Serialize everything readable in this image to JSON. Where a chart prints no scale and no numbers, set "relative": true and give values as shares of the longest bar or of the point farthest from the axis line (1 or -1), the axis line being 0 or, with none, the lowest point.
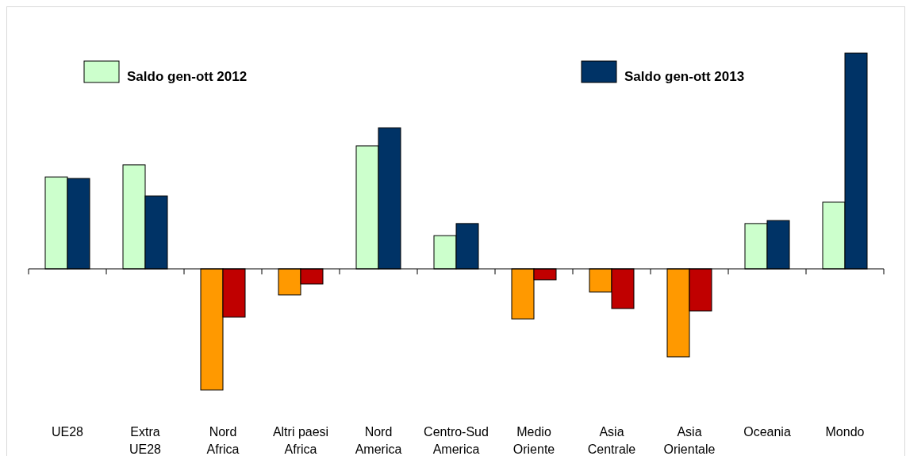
{
  "chart_data": {
    "type": "bar",
    "relative": true,
    "legend": "top",
    "categories": [
      "UE28",
      "Extra UE28",
      "Nord Africa",
      "Altri paesi Africa",
      "Nord America",
      "Centro-Sud America",
      "Medio Oriente",
      "Asia Centrale",
      "Asia Orientale",
      "Oceania",
      "Mondo"
    ],
    "series": [
      {
        "name": "Saldo gen-ott 2012",
        "color": "#ccffcc",
        "colors": [
          "#ccffcc",
          "#ccffcc",
          "#ff9900",
          "#ff9900",
          "#ccffcc",
          "#ccffcc",
          "#ff9900",
          "#ff9900",
          "#ff9900",
          "#ccffcc",
          "#ccffcc"
        ],
        "values": [
          0.426,
          0.482,
          -0.562,
          -0.121,
          0.57,
          0.154,
          -0.232,
          -0.107,
          -0.408,
          0.21,
          0.309
        ]
      },
      {
        "name": "Saldo gen-ott 2013",
        "color": "#003366",
        "colors": [
          "#003366",
          "#003366",
          "#c00000",
          "#c00000",
          "#003366",
          "#003366",
          "#c00000",
          "#c00000",
          "#c00000",
          "#003366",
          "#003366"
        ],
        "values": [
          0.419,
          0.338,
          -0.224,
          -0.07,
          0.654,
          0.21,
          -0.051,
          -0.184,
          -0.195,
          0.224,
          1
        ]
      }
    ]
  }
}
